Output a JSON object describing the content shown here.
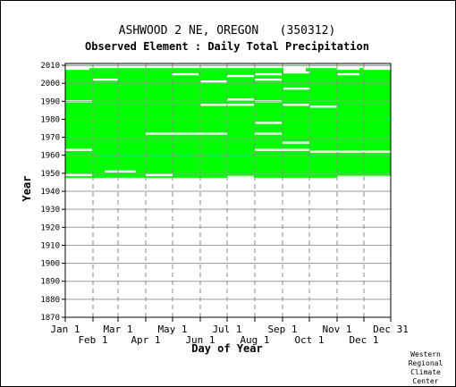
{
  "chart_data": {
    "type": "heatmap",
    "title": "ASHWOOD 2 NE, OREGON   (350312)",
    "subtitle": "Observed Element : Daily Total Precipitation",
    "xlabel": "Day of Year",
    "ylabel": "Year",
    "ylim": [
      1870,
      2011
    ],
    "xlim": [
      1,
      365
    ],
    "y_ticks": [
      1870,
      1880,
      1890,
      1900,
      1910,
      1920,
      1930,
      1940,
      1950,
      1960,
      1970,
      1980,
      1990,
      2000,
      2010
    ],
    "x_ticks_top_row": [
      {
        "label": "Jan 1",
        "day": 1
      },
      {
        "label": "Mar 1",
        "day": 60
      },
      {
        "label": "May 1",
        "day": 121
      },
      {
        "label": "Jul 1",
        "day": 182
      },
      {
        "label": "Sep 1",
        "day": 244
      },
      {
        "label": "Nov 1",
        "day": 305
      },
      {
        "label": "Dec 31",
        "day": 365
      }
    ],
    "x_ticks_bottom_row": [
      {
        "label": "Feb 1",
        "day": 32
      },
      {
        "label": "Apr 1",
        "day": 91
      },
      {
        "label": "Jun 1",
        "day": 152
      },
      {
        "label": "Aug 1",
        "day": 213
      },
      {
        "label": "Oct 1",
        "day": 274
      },
      {
        "label": "Dec 1",
        "day": 335
      }
    ],
    "grid": true,
    "data_color": "#00ff00",
    "record_span": {
      "start_year": 1947.5,
      "end_year": 2010.5
    },
    "missing_segments": [
      {
        "year": 2009,
        "day_start": 1,
        "day_end": 365
      },
      {
        "year": 2010.5,
        "day_start": 1,
        "day_end": 365
      },
      {
        "year": 2008,
        "day_start": 1,
        "day_end": 28
      },
      {
        "year": 2008,
        "day_start": 245,
        "day_end": 270
      },
      {
        "year": 2007,
        "day_start": 245,
        "day_end": 270
      },
      {
        "year": 2006,
        "day_start": 245,
        "day_end": 275
      },
      {
        "year": 2008,
        "day_start": 305,
        "day_end": 330
      },
      {
        "year": 2008,
        "day_start": 335,
        "day_end": 365
      },
      {
        "year": 2005,
        "day_start": 305,
        "day_end": 330
      },
      {
        "year": 2005,
        "day_start": 120,
        "day_end": 150
      },
      {
        "year": 2005,
        "day_start": 213,
        "day_end": 243
      },
      {
        "year": 2004,
        "day_start": 182,
        "day_end": 212
      },
      {
        "year": 2002,
        "day_start": 32,
        "day_end": 60
      },
      {
        "year": 2001,
        "day_start": 152,
        "day_end": 182
      },
      {
        "year": 2002,
        "day_start": 213,
        "day_end": 243
      },
      {
        "year": 1997,
        "day_start": 245,
        "day_end": 275
      },
      {
        "year": 1990,
        "day_start": 1,
        "day_end": 31
      },
      {
        "year": 1991,
        "day_start": 182,
        "day_end": 212
      },
      {
        "year": 1990,
        "day_start": 213,
        "day_end": 243
      },
      {
        "year": 1988,
        "day_start": 152,
        "day_end": 212
      },
      {
        "year": 1988,
        "day_start": 244,
        "day_end": 274
      },
      {
        "year": 1987,
        "day_start": 275,
        "day_end": 305
      },
      {
        "year": 1978,
        "day_start": 213,
        "day_end": 243
      },
      {
        "year": 1972,
        "day_start": 91,
        "day_end": 182
      },
      {
        "year": 1972,
        "day_start": 213,
        "day_end": 243
      },
      {
        "year": 1967,
        "day_start": 244,
        "day_end": 274
      },
      {
        "year": 1963,
        "day_start": 1,
        "day_end": 31
      },
      {
        "year": 1963,
        "day_start": 213,
        "day_end": 274
      },
      {
        "year": 1962,
        "day_start": 275,
        "day_end": 305
      },
      {
        "year": 1962,
        "day_start": 305,
        "day_end": 365
      },
      {
        "year": 1951,
        "day_start": 45,
        "day_end": 80
      },
      {
        "year": 1949,
        "day_start": 1,
        "day_end": 31
      },
      {
        "year": 1949,
        "day_start": 91,
        "day_end": 121
      },
      {
        "year": 1948,
        "day_start": 182,
        "day_end": 212
      },
      {
        "year": 1948,
        "day_start": 305,
        "day_end": 365
      }
    ],
    "sparse_points": [
      {
        "year": 1982,
        "day": 42
      },
      {
        "year": 1993,
        "day": 150
      },
      {
        "year": 1955,
        "day": 345
      },
      {
        "year": 2001,
        "day": 330
      }
    ]
  },
  "credit": [
    "Western",
    "Regional",
    "Climate",
    "Center"
  ]
}
